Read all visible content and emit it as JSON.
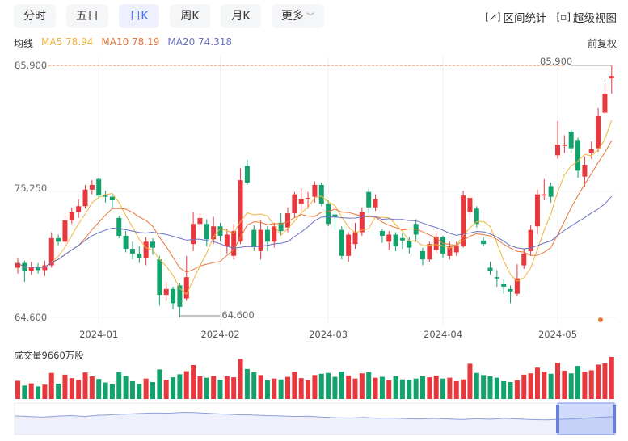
{
  "tabs": [
    {
      "label": "分时"
    },
    {
      "label": "五日"
    },
    {
      "label": "日K",
      "active": true
    },
    {
      "label": "周K"
    },
    {
      "label": "月K"
    },
    {
      "label": "更多"
    }
  ],
  "tools": [
    {
      "label": "区间统计",
      "icon": "range-stat-icon"
    },
    {
      "label": "超级视图",
      "icon": "super-view-icon"
    }
  ],
  "legend": {
    "title": "均线",
    "ma5": "MA5 78.94",
    "ma10": "MA10 78.19",
    "ma20": "MA20 74.318"
  },
  "adjust": "前复权",
  "colors": {
    "up": "#e8383d",
    "down": "#11a36b",
    "ma5": "#f0b43c",
    "ma10": "#e8753a",
    "ma20": "#6a72c4",
    "accent": "#4a6cf7"
  },
  "chart_data": {
    "type": "candlestick",
    "y_ticks": [
      "85.900",
      "75.250",
      "64.600"
    ],
    "ylim": [
      64.6,
      85.9
    ],
    "high_label": "85.900",
    "low_label": "64.600",
    "x_ticks": [
      {
        "label": "2024-01",
        "index": 12
      },
      {
        "label": "2024-02",
        "index": 30
      },
      {
        "label": "2024-03",
        "index": 46
      },
      {
        "label": "2024-04",
        "index": 63
      },
      {
        "label": "2024-05",
        "index": 80
      }
    ],
    "candles": [
      [
        68.8,
        69.6,
        68.3,
        69.2
      ],
      [
        69.2,
        69.4,
        67.6,
        68.5
      ],
      [
        68.5,
        69.3,
        68.2,
        68.9
      ],
      [
        68.9,
        69.2,
        68.3,
        68.6
      ],
      [
        68.6,
        69.4,
        68.1,
        69.0
      ],
      [
        69.0,
        71.8,
        68.8,
        71.3
      ],
      [
        71.3,
        71.6,
        70.7,
        71.0
      ],
      [
        71.0,
        73.2,
        70.8,
        72.8
      ],
      [
        72.8,
        73.9,
        72.5,
        73.5
      ],
      [
        73.5,
        74.6,
        73.0,
        74.0
      ],
      [
        74.0,
        75.8,
        73.8,
        75.4
      ],
      [
        75.4,
        76.2,
        75.0,
        75.8
      ],
      [
        76.3,
        76.4,
        74.6,
        74.9
      ],
      [
        74.9,
        75.3,
        74.3,
        74.8
      ],
      [
        74.8,
        75.0,
        73.9,
        74.5
      ],
      [
        73.0,
        73.2,
        71.3,
        71.5
      ],
      [
        71.5,
        71.9,
        70.1,
        70.4
      ],
      [
        70.4,
        71.0,
        69.5,
        70.0
      ],
      [
        70.0,
        70.6,
        69.2,
        69.6
      ],
      [
        69.6,
        71.4,
        69.0,
        71.0
      ],
      [
        71.0,
        71.3,
        69.9,
        70.5
      ],
      [
        69.5,
        69.8,
        65.6,
        66.5
      ],
      [
        66.5,
        67.6,
        66.0,
        67.0
      ],
      [
        67.0,
        67.2,
        65.3,
        65.8
      ],
      [
        67.3,
        67.5,
        64.6,
        65.5
      ],
      [
        66.2,
        69.8,
        66.0,
        68.0
      ],
      [
        70.8,
        73.5,
        70.2,
        72.5
      ],
      [
        72.5,
        73.4,
        72.0,
        73.0
      ],
      [
        72.5,
        72.9,
        70.6,
        71.2
      ],
      [
        71.2,
        73.1,
        70.8,
        72.3
      ],
      [
        72.3,
        72.6,
        71.0,
        71.5
      ],
      [
        70.6,
        72.1,
        70.0,
        71.6
      ],
      [
        69.8,
        72.5,
        69.5,
        71.9
      ],
      [
        71.0,
        77.2,
        70.8,
        76.2
      ],
      [
        77.4,
        77.9,
        75.8,
        76.0
      ],
      [
        72.0,
        72.4,
        70.2,
        70.6
      ],
      [
        70.2,
        72.8,
        69.5,
        72.0
      ],
      [
        72.0,
        72.3,
        70.2,
        71.0
      ],
      [
        71.0,
        72.6,
        70.5,
        72.3
      ],
      [
        72.6,
        73.4,
        71.5,
        71.9
      ],
      [
        72.2,
        73.9,
        71.8,
        73.4
      ],
      [
        73.4,
        75.2,
        73.0,
        75.0
      ],
      [
        74.2,
        75.5,
        73.6,
        74.6
      ],
      [
        74.6,
        75.2,
        73.8,
        74.7
      ],
      [
        74.8,
        76.1,
        74.3,
        75.8
      ],
      [
        75.8,
        76.0,
        74.0,
        74.2
      ],
      [
        74.2,
        74.5,
        72.3,
        72.5
      ],
      [
        73.3,
        73.9,
        72.0,
        73.1
      ],
      [
        72.0,
        72.3,
        69.5,
        69.8
      ],
      [
        69.8,
        71.8,
        69.3,
        71.6
      ],
      [
        70.8,
        72.6,
        70.4,
        71.8
      ],
      [
        71.8,
        73.9,
        71.5,
        73.5
      ],
      [
        75.2,
        75.5,
        73.4,
        73.9
      ],
      [
        73.9,
        75.0,
        73.6,
        74.6
      ],
      [
        71.9,
        72.1,
        70.9,
        71.5
      ],
      [
        71.0,
        71.9,
        70.3,
        71.6
      ],
      [
        71.6,
        71.8,
        70.2,
        70.6
      ],
      [
        71.3,
        71.7,
        70.4,
        71.1
      ],
      [
        71.1,
        71.4,
        70.0,
        70.5
      ],
      [
        72.5,
        72.9,
        71.0,
        71.6
      ],
      [
        70.2,
        70.5,
        69.0,
        69.5
      ],
      [
        69.5,
        71.0,
        69.3,
        70.8
      ],
      [
        70.3,
        71.9,
        70.0,
        71.4
      ],
      [
        71.4,
        71.5,
        69.6,
        70.0
      ],
      [
        69.8,
        71.0,
        69.5,
        70.6
      ],
      [
        70.1,
        71.0,
        69.8,
        70.7
      ],
      [
        70.6,
        75.3,
        70.5,
        74.9
      ],
      [
        73.5,
        75.0,
        73.0,
        74.7
      ],
      [
        73.8,
        74.0,
        72.2,
        72.5
      ],
      [
        71.1,
        71.4,
        70.6,
        70.8
      ],
      [
        68.8,
        69.3,
        68.2,
        68.5
      ],
      [
        68.0,
        68.6,
        67.2,
        67.9
      ],
      [
        67.4,
        67.8,
        66.6,
        67.2
      ],
      [
        67.0,
        67.3,
        65.8,
        66.8
      ],
      [
        66.6,
        69.1,
        66.4,
        67.9
      ],
      [
        69.0,
        70.4,
        68.7,
        70.0
      ],
      [
        70.2,
        72.4,
        69.8,
        72.0
      ],
      [
        72.3,
        75.4,
        71.6,
        75.0
      ],
      [
        74.9,
        76.3,
        74.5,
        75.0
      ],
      [
        75.7,
        76.0,
        74.3,
        74.8
      ],
      [
        78.3,
        81.2,
        78.0,
        79.2
      ],
      [
        79.1,
        80.0,
        78.5,
        79.2
      ],
      [
        80.3,
        80.5,
        78.5,
        78.9
      ],
      [
        79.6,
        79.8,
        76.4,
        77.0
      ],
      [
        76.5,
        78.2,
        75.6,
        77.5
      ],
      [
        78.5,
        79.5,
        78.0,
        78.8
      ],
      [
        78.9,
        82.3,
        78.6,
        81.6
      ],
      [
        81.9,
        84.4,
        81.8,
        83.5
      ],
      [
        84.8,
        85.9,
        83.5,
        85.0
      ]
    ],
    "volumes": [
      4200,
      3100,
      3600,
      2900,
      3300,
      6000,
      3500,
      5600,
      4800,
      4400,
      6100,
      5200,
      4600,
      3800,
      3400,
      6200,
      5300,
      4100,
      3500,
      4700,
      3900,
      6800,
      4400,
      5000,
      5700,
      6400,
      7800,
      5200,
      4900,
      5300,
      4400,
      5200,
      5000,
      9200,
      6900,
      6200,
      5500,
      4300,
      4700,
      4500,
      5100,
      6300,
      4800,
      4300,
      5500,
      5800,
      6000,
      5100,
      6300,
      5400,
      4700,
      5900,
      6200,
      4900,
      5100,
      4300,
      5200,
      4500,
      4400,
      4700,
      5200,
      5000,
      5400,
      4700,
      4900,
      4100,
      4500,
      8100,
      6000,
      5500,
      5200,
      4900,
      4100,
      3900,
      4300,
      5600,
      5900,
      7200,
      6300,
      5800,
      8300,
      6500,
      5900,
      7600,
      6300,
      6600,
      7900,
      8200,
      9660
    ],
    "volume_title": "成交量9660万股"
  },
  "navigator": {
    "values": [
      62,
      60,
      58,
      61,
      63,
      60,
      64,
      66,
      68,
      70,
      72,
      71,
      74,
      73,
      70,
      68,
      66,
      65,
      63,
      62,
      60,
      61,
      58,
      56,
      55,
      57,
      54,
      55,
      53,
      52,
      54,
      52,
      50,
      53,
      51,
      54,
      52,
      50,
      49,
      51,
      52,
      55,
      58,
      60
    ]
  }
}
